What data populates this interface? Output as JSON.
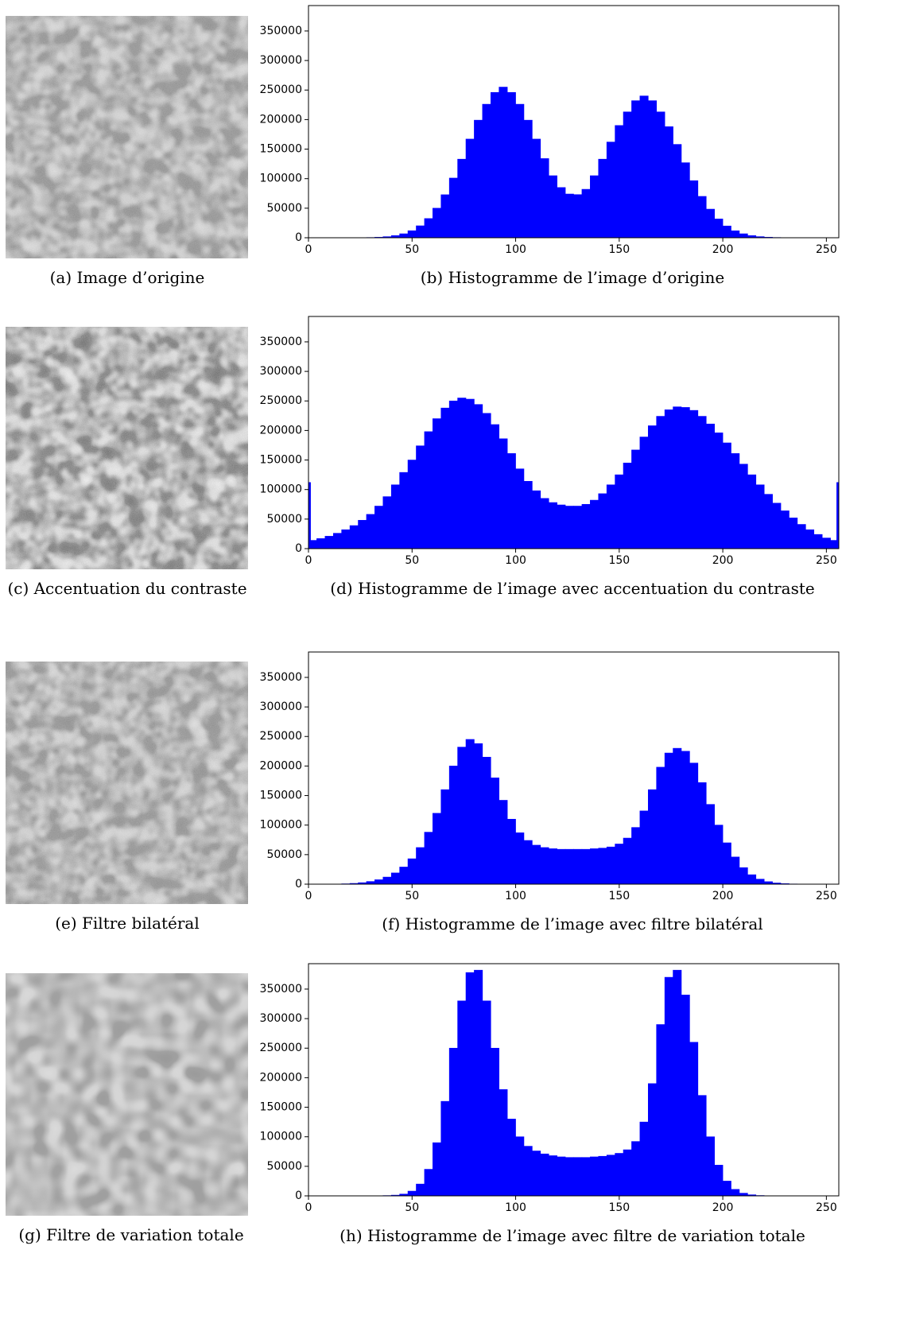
{
  "images": [
    {
      "caption": "(a) Image d’origine"
    },
    {
      "caption": "(c) Accentuation du contraste"
    },
    {
      "caption": "(e) Filtre bilatéral"
    },
    {
      "caption": "(g) Filtre de variation totale"
    }
  ],
  "chart_data": [
    {
      "type": "histogram",
      "caption": "(b) Histogramme de l’image d’origine",
      "color": "#0000ff",
      "xlim": [
        0,
        256
      ],
      "ylim": [
        0,
        393000
      ],
      "xticks": [
        0,
        50,
        100,
        150,
        200,
        250
      ],
      "yticks": [
        0,
        50000,
        100000,
        150000,
        200000,
        250000,
        300000,
        350000
      ],
      "bins": [
        0,
        4,
        8,
        12,
        16,
        20,
        24,
        28,
        32,
        36,
        40,
        44,
        48,
        52,
        56,
        60,
        64,
        68,
        72,
        76,
        80,
        84,
        88,
        92,
        96,
        100,
        104,
        108,
        112,
        116,
        120,
        124,
        128,
        132,
        136,
        140,
        144,
        148,
        152,
        156,
        160,
        164,
        168,
        172,
        176,
        180,
        184,
        188,
        192,
        196,
        200,
        204,
        208,
        212,
        216,
        220,
        224,
        228,
        232,
        236,
        240,
        244,
        248,
        252,
        256
      ],
      "values": [
        0,
        0,
        0,
        0,
        0,
        0,
        170,
        400,
        870,
        1800,
        3600,
        6700,
        11900,
        20200,
        32500,
        50000,
        72800,
        101000,
        133000,
        167000,
        199000,
        226000,
        246000,
        255000,
        246000,
        226000,
        199000,
        167000,
        134000,
        105000,
        85000,
        74000,
        73000,
        82000,
        105000,
        133000,
        162000,
        190000,
        213000,
        232000,
        240000,
        232000,
        213000,
        188000,
        158000,
        127000,
        96600,
        70000,
        48400,
        31800,
        19900,
        11800,
        6700,
        3600,
        1860,
        900,
        420,
        180,
        70,
        0,
        0,
        0,
        0,
        0
      ]
    },
    {
      "type": "histogram",
      "caption": "(d) Histogramme de l’image avec accentuation du contraste",
      "color": "#0000ff",
      "xlim": [
        0,
        256
      ],
      "ylim": [
        0,
        393000
      ],
      "xticks": [
        0,
        50,
        100,
        150,
        200,
        250
      ],
      "yticks": [
        0,
        50000,
        100000,
        150000,
        200000,
        250000,
        300000,
        350000
      ],
      "bins": [
        0,
        1,
        4,
        8,
        12,
        16,
        20,
        24,
        28,
        32,
        36,
        40,
        44,
        48,
        52,
        56,
        60,
        64,
        68,
        72,
        76,
        80,
        84,
        88,
        92,
        96,
        100,
        104,
        108,
        112,
        116,
        120,
        124,
        128,
        132,
        136,
        140,
        144,
        148,
        152,
        156,
        160,
        164,
        168,
        172,
        176,
        180,
        184,
        188,
        192,
        196,
        200,
        204,
        208,
        212,
        216,
        220,
        224,
        228,
        232,
        236,
        240,
        244,
        248,
        252,
        255,
        256
      ],
      "values": [
        112000,
        14000,
        17000,
        21000,
        26000,
        32000,
        39000,
        48000,
        58000,
        72000,
        88000,
        108000,
        129000,
        150000,
        174000,
        198000,
        220000,
        238000,
        250000,
        255000,
        253000,
        244000,
        229000,
        210000,
        186000,
        161000,
        135000,
        114000,
        98000,
        85000,
        78000,
        74000,
        72000,
        72000,
        75000,
        82000,
        93000,
        108000,
        125000,
        145000,
        167000,
        189000,
        208000,
        224000,
        235000,
        240000,
        239000,
        234000,
        224000,
        211000,
        196000,
        179000,
        161000,
        143000,
        125000,
        108000,
        92000,
        77000,
        64000,
        52000,
        41000,
        32000,
        24000,
        18000,
        14000,
        112000
      ]
    },
    {
      "type": "histogram",
      "caption": "(f) Histogramme de l’image avec filtre bilatéral",
      "color": "#0000ff",
      "xlim": [
        0,
        256
      ],
      "ylim": [
        0,
        393000
      ],
      "xticks": [
        0,
        50,
        100,
        150,
        200,
        250
      ],
      "yticks": [
        0,
        50000,
        100000,
        150000,
        200000,
        250000,
        300000,
        350000
      ],
      "bins": [
        0,
        4,
        8,
        12,
        16,
        20,
        24,
        28,
        32,
        36,
        40,
        44,
        48,
        52,
        56,
        60,
        64,
        68,
        72,
        76,
        80,
        84,
        88,
        92,
        96,
        100,
        104,
        108,
        112,
        116,
        120,
        124,
        128,
        132,
        136,
        140,
        144,
        148,
        152,
        156,
        160,
        164,
        168,
        172,
        176,
        180,
        184,
        188,
        192,
        196,
        200,
        204,
        208,
        212,
        216,
        220,
        224,
        228,
        232,
        236,
        240,
        244,
        248,
        252,
        256
      ],
      "values": [
        0,
        0,
        0,
        200,
        600,
        1300,
        2500,
        4500,
        7500,
        12000,
        19000,
        29000,
        43000,
        62000,
        88000,
        120000,
        160000,
        200000,
        232000,
        245000,
        238000,
        215000,
        180000,
        142000,
        110000,
        87000,
        74000,
        66000,
        62000,
        60000,
        59000,
        59000,
        59000,
        59000,
        60000,
        61000,
        63000,
        68000,
        78000,
        96000,
        124000,
        160000,
        198000,
        222000,
        230000,
        225000,
        205000,
        172000,
        135000,
        100000,
        70000,
        46000,
        28000,
        16000,
        8500,
        4200,
        2000,
        900,
        350,
        100,
        0,
        0,
        0,
        0
      ]
    },
    {
      "type": "histogram",
      "caption": "(h) Histogramme de l’image avec filtre de variation totale",
      "color": "#0000ff",
      "xlim": [
        0,
        256
      ],
      "ylim": [
        0,
        393000
      ],
      "xticks": [
        0,
        50,
        100,
        150,
        200,
        250
      ],
      "yticks": [
        0,
        50000,
        100000,
        150000,
        200000,
        250000,
        300000,
        350000
      ],
      "bins": [
        0,
        4,
        8,
        12,
        16,
        20,
        24,
        28,
        32,
        36,
        40,
        44,
        48,
        52,
        56,
        60,
        64,
        68,
        72,
        76,
        80,
        84,
        88,
        92,
        96,
        100,
        104,
        108,
        112,
        116,
        120,
        124,
        128,
        132,
        136,
        140,
        144,
        148,
        152,
        156,
        160,
        164,
        168,
        172,
        176,
        180,
        184,
        188,
        192,
        196,
        200,
        204,
        208,
        212,
        216,
        220,
        224,
        228,
        232,
        236,
        240,
        244,
        248,
        252,
        256
      ],
      "values": [
        0,
        0,
        0,
        0,
        0,
        0,
        0,
        0,
        200,
        500,
        1200,
        3000,
        8000,
        20000,
        45000,
        90000,
        160000,
        250000,
        330000,
        378000,
        382000,
        330000,
        250000,
        180000,
        130000,
        100000,
        84000,
        76000,
        71000,
        68000,
        66000,
        65000,
        65000,
        65000,
        66000,
        67000,
        69000,
        72000,
        78000,
        92000,
        125000,
        190000,
        290000,
        370000,
        382000,
        340000,
        260000,
        170000,
        100000,
        52000,
        25000,
        11000,
        4500,
        1800,
        600,
        200,
        50,
        0,
        0,
        0,
        0,
        0,
        0,
        0
      ]
    }
  ]
}
